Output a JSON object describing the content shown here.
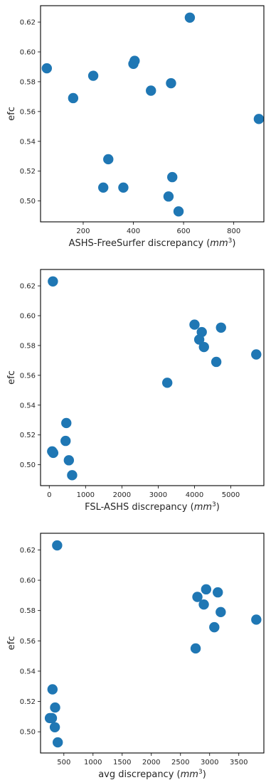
{
  "chart_data": [
    {
      "type": "scatter",
      "xlabel": "ASHS-FreeSurfer discrepancy",
      "xlabel_unit": "mm",
      "xlabel_unit_exp": "3",
      "ylabel": "efc",
      "xlim": [
        30,
        920
      ],
      "ylim": [
        0.486,
        0.631
      ],
      "xticks": [
        200,
        400,
        600,
        800
      ],
      "yticks": [
        0.5,
        0.52,
        0.54,
        0.56,
        0.58,
        0.6,
        0.62
      ],
      "xtick_labels": [
        "200",
        "400",
        "600",
        "800"
      ],
      "ytick_labels": [
        "0.50",
        "0.52",
        "0.54",
        "0.56",
        "0.58",
        "0.60",
        "0.62"
      ],
      "grid": false,
      "marker_color": "#1f77b4",
      "points": [
        {
          "x": 625,
          "y": 0.623
        },
        {
          "x": 405,
          "y": 0.594
        },
        {
          "x": 400,
          "y": 0.592
        },
        {
          "x": 55,
          "y": 0.589
        },
        {
          "x": 240,
          "y": 0.584
        },
        {
          "x": 550,
          "y": 0.579
        },
        {
          "x": 470,
          "y": 0.574
        },
        {
          "x": 160,
          "y": 0.569
        },
        {
          "x": 900,
          "y": 0.555
        },
        {
          "x": 300,
          "y": 0.528
        },
        {
          "x": 555,
          "y": 0.516
        },
        {
          "x": 280,
          "y": 0.509
        },
        {
          "x": 360,
          "y": 0.509
        },
        {
          "x": 540,
          "y": 0.503
        },
        {
          "x": 580,
          "y": 0.493
        }
      ]
    },
    {
      "type": "scatter",
      "xlabel": "FSL-ASHS discrepancy",
      "xlabel_unit": "mm",
      "xlabel_unit_exp": "3",
      "ylabel": "efc",
      "xlim": [
        -240,
        5910
      ],
      "ylim": [
        0.486,
        0.631
      ],
      "xticks": [
        0,
        1000,
        2000,
        3000,
        4000,
        5000
      ],
      "yticks": [
        0.5,
        0.52,
        0.54,
        0.56,
        0.58,
        0.6,
        0.62
      ],
      "xtick_labels": [
        "0",
        "1000",
        "2000",
        "3000",
        "4000",
        "5000"
      ],
      "ytick_labels": [
        "0.50",
        "0.52",
        "0.54",
        "0.56",
        "0.58",
        "0.60",
        "0.62"
      ],
      "grid": false,
      "marker_color": "#1f77b4",
      "points": [
        {
          "x": 100,
          "y": 0.623
        },
        {
          "x": 4000,
          "y": 0.594
        },
        {
          "x": 4730,
          "y": 0.592
        },
        {
          "x": 4200,
          "y": 0.589
        },
        {
          "x": 4130,
          "y": 0.584
        },
        {
          "x": 4260,
          "y": 0.579
        },
        {
          "x": 5700,
          "y": 0.574
        },
        {
          "x": 4600,
          "y": 0.569
        },
        {
          "x": 3250,
          "y": 0.555
        },
        {
          "x": 470,
          "y": 0.528
        },
        {
          "x": 450,
          "y": 0.516
        },
        {
          "x": 80,
          "y": 0.509
        },
        {
          "x": 110,
          "y": 0.508
        },
        {
          "x": 540,
          "y": 0.503
        },
        {
          "x": 630,
          "y": 0.493
        }
      ]
    },
    {
      "type": "scatter",
      "xlabel": "avg discrepancy",
      "xlabel_unit": "mm",
      "xlabel_unit_exp": "3",
      "ylabel": "efc",
      "xlim": [
        100,
        3930
      ],
      "ylim": [
        0.486,
        0.631
      ],
      "xticks": [
        500,
        1000,
        1500,
        2000,
        2500,
        3000,
        3500
      ],
      "yticks": [
        0.5,
        0.52,
        0.54,
        0.56,
        0.58,
        0.6,
        0.62
      ],
      "xtick_labels": [
        "500",
        "1000",
        "1500",
        "2000",
        "2500",
        "3000",
        "3500"
      ],
      "ytick_labels": [
        "0.50",
        "0.52",
        "0.54",
        "0.56",
        "0.58",
        "0.60",
        "0.62"
      ],
      "grid": false,
      "marker_color": "#1f77b4",
      "points": [
        {
          "x": 385,
          "y": 0.623
        },
        {
          "x": 2940,
          "y": 0.594
        },
        {
          "x": 3140,
          "y": 0.592
        },
        {
          "x": 2790,
          "y": 0.589
        },
        {
          "x": 2900,
          "y": 0.584
        },
        {
          "x": 3190,
          "y": 0.579
        },
        {
          "x": 3800,
          "y": 0.574
        },
        {
          "x": 3080,
          "y": 0.569
        },
        {
          "x": 2760,
          "y": 0.555
        },
        {
          "x": 305,
          "y": 0.528
        },
        {
          "x": 350,
          "y": 0.516
        },
        {
          "x": 260,
          "y": 0.509
        },
        {
          "x": 295,
          "y": 0.509
        },
        {
          "x": 345,
          "y": 0.503
        },
        {
          "x": 395,
          "y": 0.493
        }
      ]
    }
  ]
}
